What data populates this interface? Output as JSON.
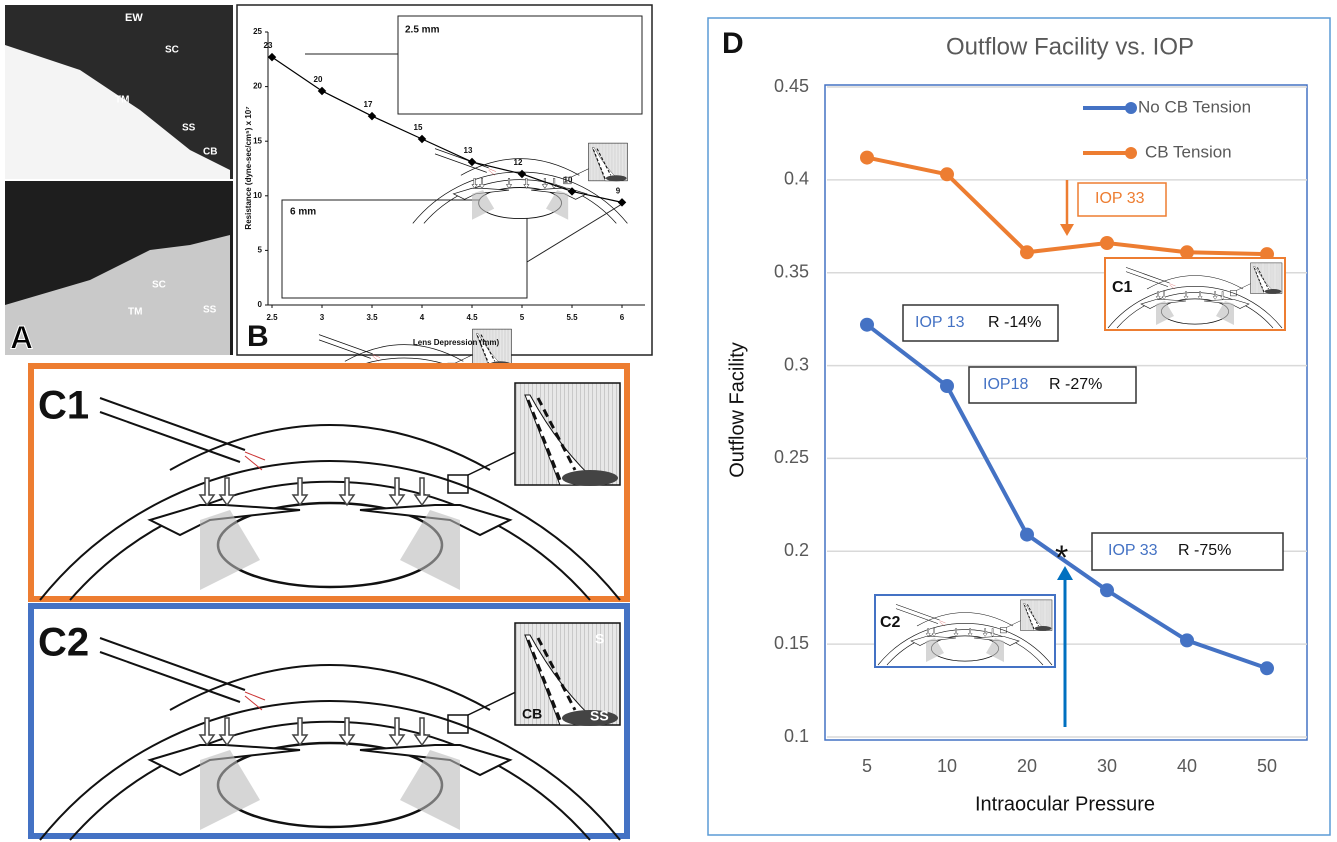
{
  "chart_data": [
    {
      "type": "line",
      "panel_label": "B",
      "x": [
        2.5,
        3,
        3.5,
        4,
        4.5,
        5,
        5.5,
        6
      ],
      "values": [
        22.7,
        19.6,
        17.3,
        15.2,
        13.1,
        12.0,
        10.4,
        9.4
      ],
      "value_labels": [
        "23",
        "20",
        "17",
        "15",
        "13",
        "12",
        "10",
        "9"
      ],
      "color": "#000000",
      "xlim": [
        2.46,
        6.23
      ],
      "xticks": [
        2.5,
        3,
        3.5,
        4,
        4.5,
        5,
        5.5,
        6
      ],
      "ylim": [
        0,
        25
      ],
      "yticks": [
        0,
        5,
        10,
        15,
        20,
        25
      ],
      "xlabel": "Lens Depression (mm)",
      "ylabel": "Resistance (dyne-sec/cm⁵) x 10⁷",
      "annotations": [
        "2.5 mm",
        "6 mm"
      ]
    },
    {
      "type": "line",
      "panel_label": "D",
      "title": "Outflow Facility vs. IOP",
      "categories": [
        "5",
        "10",
        "20",
        "30",
        "40",
        "50"
      ],
      "series": [
        {
          "name": "No CB Tension",
          "color": "#4472c4",
          "values": [
            0.322,
            0.289,
            0.209,
            0.179,
            0.152,
            0.137
          ]
        },
        {
          "name": "CB Tension",
          "color": "#ed7d31",
          "values": [
            0.412,
            0.403,
            0.361,
            0.366,
            0.361,
            0.36
          ]
        }
      ],
      "ylim": [
        0.1,
        0.45
      ],
      "yticks": [
        0.1,
        0.15,
        0.2,
        0.25,
        0.3,
        0.35,
        0.4,
        0.45
      ],
      "grid": true,
      "legend": "upper right",
      "xlabel": "Intraocular Pressure",
      "ylabel": "Outflow Facility",
      "annotations": [
        "IOP 33",
        "IOP 13",
        "R -14%",
        "IOP18",
        "R -27%",
        "IOP 33",
        "R -75%",
        "C1",
        "C2",
        "*"
      ]
    }
  ],
  "panels": {
    "A": {
      "label": "A",
      "labels": [
        "EW",
        "SC",
        "TM",
        "SS",
        "CB",
        "SC",
        "TM",
        "SS"
      ]
    },
    "C1": {
      "label": "C1"
    },
    "C2": {
      "label": "C2",
      "inset_labels": [
        "S",
        "CB",
        "SS"
      ]
    }
  }
}
